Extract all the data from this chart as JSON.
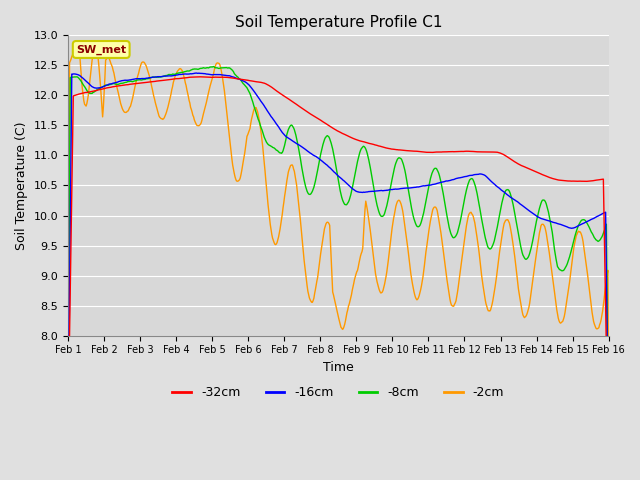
{
  "title": "Soil Temperature Profile C1",
  "xlabel": "Time",
  "ylabel": "Soil Temperature (C)",
  "ylim": [
    8.0,
    13.0
  ],
  "yticks": [
    8.0,
    8.5,
    9.0,
    9.5,
    10.0,
    10.5,
    11.0,
    11.5,
    12.0,
    12.5,
    13.0
  ],
  "x_labels": [
    "Feb 1",
    "Feb 2",
    "Feb 3",
    "Feb 4",
    "Feb 5",
    "Feb 6",
    "Feb 7",
    "Feb 8",
    "Feb 9",
    "Feb 10",
    "Feb 11",
    "Feb 12",
    "Feb 13",
    "Feb 14",
    "Feb 15",
    "Feb 16"
  ],
  "legend_label": "SW_met",
  "series_labels": [
    "-32cm",
    "-16cm",
    "-8cm",
    "-2cm"
  ],
  "series_colors": [
    "#ff0000",
    "#0000ff",
    "#00cc00",
    "#ff9900"
  ],
  "bg_color": "#e0e0e0",
  "plot_bg_color": "#d8d8d8",
  "grid_color": "#ffffff",
  "n_points": 720,
  "title_fontsize": 11,
  "axis_fontsize": 9,
  "tick_fontsize": 8
}
